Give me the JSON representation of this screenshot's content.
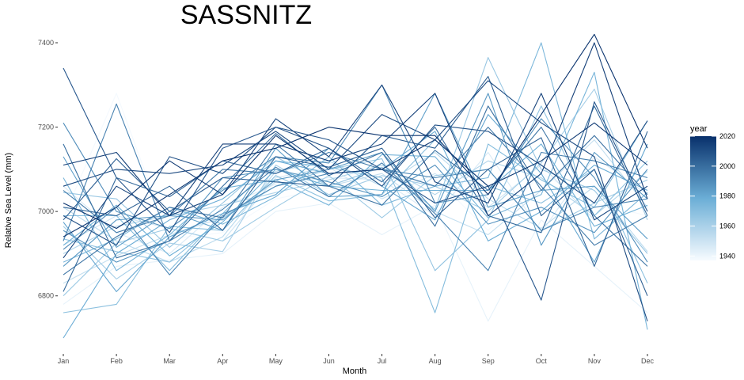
{
  "chart_data": {
    "type": "line",
    "title": "SASSNITZ",
    "xlabel": "Month",
    "ylabel": "Relative Sea Level (mm)",
    "categories": [
      "Jan",
      "Feb",
      "Mar",
      "Apr",
      "May",
      "Jun",
      "Jul",
      "Aug",
      "Sep",
      "Oct",
      "Nov",
      "Dec"
    ],
    "ylim": [
      6670,
      7430
    ],
    "yticks": [
      "6800",
      "7000",
      "7200",
      "7400"
    ],
    "grid": false,
    "legend": {
      "title": "year",
      "placement": "right",
      "color_min": "#f7fbff",
      "color_max": "#08306b",
      "range": [
        1937,
        2020
      ],
      "ticks": [
        "1940",
        "1960",
        "1980",
        "2000",
        "2020"
      ]
    },
    "series": [
      {
        "year": 1938,
        "values": [
          6985,
          7280,
          6935,
          6950,
          7030,
          7055,
          7010,
          7080,
          6955,
          7090,
          7020,
          6990
        ]
      },
      {
        "year": 1942,
        "values": [
          6780,
          6870,
          6885,
          6900,
          7000,
          7020,
          6945,
          7015,
          6740,
          6980,
          6870,
          6760
        ]
      },
      {
        "year": 1946,
        "values": [
          7060,
          6950,
          6900,
          7010,
          7065,
          7080,
          7075,
          6990,
          7140,
          6950,
          7130,
          7040
        ]
      },
      {
        "year": 1949,
        "values": [
          6920,
          6990,
          6960,
          6930,
          7080,
          7105,
          7030,
          7090,
          7010,
          7110,
          6980,
          7060
        ]
      },
      {
        "year": 1952,
        "values": [
          6830,
          6895,
          6945,
          6985,
          7070,
          7060,
          7090,
          7000,
          6945,
          7050,
          7170,
          7010
        ]
      },
      {
        "year": 1955,
        "values": [
          7010,
          6930,
          6880,
          6940,
          7095,
          7120,
          7060,
          7140,
          7030,
          6960,
          7060,
          6905
        ]
      },
      {
        "year": 1958,
        "values": [
          6900,
          6965,
          6990,
          7015,
          7045,
          7075,
          7110,
          7040,
          7120,
          7080,
          6990,
          7095
        ]
      },
      {
        "year": 1961,
        "values": [
          6965,
          6840,
          6925,
          6905,
          7110,
          7040,
          7085,
          7060,
          7000,
          7115,
          7290,
          6980
        ]
      },
      {
        "year": 1963,
        "values": [
          6800,
          6925,
          6960,
          6930,
          7010,
          7085,
          6985,
          7085,
          7100,
          6955,
          7020,
          7075
        ]
      },
      {
        "year": 1965,
        "values": [
          7045,
          7030,
          6915,
          7020,
          7130,
          7060,
          7105,
          7005,
          7365,
          7100,
          7050,
          6900
        ]
      },
      {
        "year": 1967,
        "values": [
          6935,
          6905,
          6880,
          6985,
          7060,
          7100,
          7125,
          6860,
          6980,
          7250,
          6990,
          7120
        ]
      },
      {
        "year": 1969,
        "values": [
          6760,
          6780,
          6965,
          6955,
          7085,
          7025,
          7040,
          7170,
          7060,
          7020,
          7100,
          6830
        ]
      },
      {
        "year": 1971,
        "values": [
          6990,
          6990,
          6860,
          6995,
          7120,
          7105,
          7080,
          6760,
          7160,
          7075,
          7010,
          7215
        ]
      },
      {
        "year": 1973,
        "values": [
          6880,
          6935,
          7010,
          6970,
          7035,
          7130,
          7015,
          7060,
          7080,
          7400,
          6935,
          7045
        ]
      },
      {
        "year": 1975,
        "values": [
          7080,
          6860,
          6945,
          7055,
          7075,
          7015,
          7135,
          7130,
          6985,
          7040,
          7330,
          6720
        ]
      },
      {
        "year": 1977,
        "values": [
          6920,
          7015,
          6895,
          6975,
          7100,
          7060,
          7050,
          7050,
          7050,
          7160,
          6965,
          7015
        ]
      },
      {
        "year": 1979,
        "values": [
          6700,
          6900,
          6980,
          7030,
          7120,
          7090,
          7100,
          7190,
          6930,
          7000,
          7110,
          7050
        ]
      },
      {
        "year": 1981,
        "values": [
          6975,
          6810,
          6940,
          6995,
          7040,
          7150,
          7060,
          6980,
          7230,
          7090,
          6880,
          7160
        ]
      },
      {
        "year": 1983,
        "values": [
          7130,
          6915,
          7000,
          6955,
          7150,
          7035,
          7040,
          7280,
          7010,
          7050,
          7060,
          6935
        ]
      },
      {
        "year": 1985,
        "values": [
          6870,
          6980,
          6990,
          6980,
          7075,
          7100,
          7140,
          7000,
          7280,
          6920,
          7140,
          7030
        ]
      },
      {
        "year": 1987,
        "values": [
          6955,
          6880,
          6930,
          7080,
          7100,
          7070,
          7035,
          7110,
          6970,
          7010,
          6950,
          7100
        ]
      },
      {
        "year": 1989,
        "values": [
          7210,
          7000,
          6960,
          7050,
          7130,
          7115,
          7300,
          7020,
          7040,
          7220,
          7080,
          6880
        ]
      },
      {
        "year": 1991,
        "values": [
          6910,
          7010,
          6850,
          6990,
          7060,
          7090,
          7100,
          7080,
          7100,
          6955,
          7010,
          7030
        ]
      },
      {
        "year": 1993,
        "values": [
          6930,
          7255,
          6930,
          7005,
          7105,
          7035,
          7115,
          6995,
          6860,
          7140,
          7120,
          7080
        ]
      },
      {
        "year": 1995,
        "values": [
          7050,
          6950,
          6990,
          7100,
          7090,
          7140,
          7100,
          7060,
          7200,
          7060,
          6920,
          6990
        ]
      },
      {
        "year": 1997,
        "values": [
          6850,
          6940,
          7010,
          6985,
          7160,
          7060,
          7015,
          7145,
          7050,
          7200,
          6990,
          6870
        ]
      },
      {
        "year": 1999,
        "values": [
          7160,
          6890,
          6930,
          7060,
          7185,
          7085,
          7140,
          6965,
          7250,
          7050,
          7180,
          7040
        ]
      },
      {
        "year": 2001,
        "values": [
          6810,
          7080,
          7035,
          7120,
          7090,
          7150,
          7070,
          7200,
          6990,
          6950,
          7250,
          6990
        ]
      },
      {
        "year": 2003,
        "values": [
          7010,
          6990,
          7060,
          6955,
          7130,
          7105,
          7150,
          6985,
          7100,
          7175,
          6870,
          7190
        ]
      },
      {
        "year": 2005,
        "values": [
          6980,
          7125,
          7000,
          7080,
          7070,
          7060,
          7180,
          7150,
          7320,
          6990,
          7100,
          6800
        ]
      },
      {
        "year": 2007,
        "values": [
          7340,
          7080,
          6950,
          7150,
          7200,
          7170,
          7100,
          7020,
          7060,
          6790,
          7260,
          7000
        ]
      },
      {
        "year": 2009,
        "values": [
          6990,
          6920,
          7130,
          7090,
          7200,
          7150,
          7060,
          7205,
          7190,
          7110,
          7020,
          7215
        ]
      },
      {
        "year": 2011,
        "values": [
          7060,
          7100,
          7090,
          7110,
          7190,
          7100,
          7230,
          7170,
          7310,
          7210,
          7130,
          6740
        ]
      },
      {
        "year": 2013,
        "values": [
          6890,
          7060,
          6990,
          7040,
          7220,
          7130,
          7300,
          7070,
          7020,
          7280,
          6980,
          7060
        ]
      },
      {
        "year": 2015,
        "values": [
          7110,
          7140,
          6990,
          7160,
          7160,
          7120,
          7160,
          7280,
          6990,
          7090,
          7400,
          7030
        ]
      },
      {
        "year": 2017,
        "values": [
          6940,
          7010,
          7120,
          7040,
          7180,
          7090,
          7100,
          7170,
          7060,
          7120,
          7210,
          7110
        ]
      },
      {
        "year": 2019,
        "values": [
          7020,
          6960,
          7040,
          7120,
          7150,
          7200,
          7180,
          7180,
          7040,
          7230,
          7420,
          7150
        ]
      }
    ]
  }
}
